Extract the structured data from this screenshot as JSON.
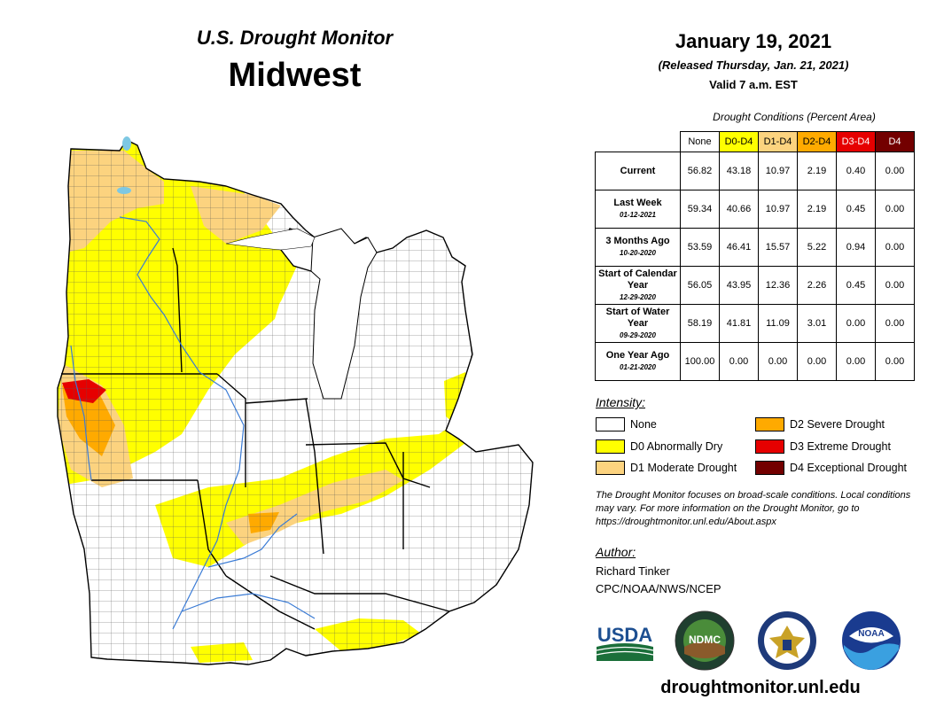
{
  "header": {
    "title_top": "U.S. Drought Monitor",
    "title_main": "Midwest",
    "date": "January 19, 2021",
    "released": "(Released Thursday, Jan. 21, 2021)",
    "valid": "Valid 7 a.m. EST"
  },
  "table": {
    "caption": "Drought Conditions (Percent Area)",
    "columns": [
      {
        "label": "None",
        "color": "#ffffff",
        "text_color": "#000000"
      },
      {
        "label": "D0-D4",
        "color": "#ffff00",
        "text_color": "#000000"
      },
      {
        "label": "D1-D4",
        "color": "#fcd37f",
        "text_color": "#000000"
      },
      {
        "label": "D2-D4",
        "color": "#ffaa00",
        "text_color": "#000000"
      },
      {
        "label": "D3-D4",
        "color": "#e60000",
        "text_color": "#ffffff"
      },
      {
        "label": "D4",
        "color": "#730000",
        "text_color": "#ffffff"
      }
    ],
    "rows": [
      {
        "label": "Current",
        "date": "",
        "values": [
          "56.82",
          "43.18",
          "10.97",
          "2.19",
          "0.40",
          "0.00"
        ]
      },
      {
        "label": "Last Week",
        "date": "01-12-2021",
        "values": [
          "59.34",
          "40.66",
          "10.97",
          "2.19",
          "0.45",
          "0.00"
        ]
      },
      {
        "label": "3 Months Ago",
        "date": "10-20-2020",
        "values": [
          "53.59",
          "46.41",
          "15.57",
          "5.22",
          "0.94",
          "0.00"
        ]
      },
      {
        "label": "Start of Calendar Year",
        "date": "12-29-2020",
        "values": [
          "56.05",
          "43.95",
          "12.36",
          "2.26",
          "0.45",
          "0.00"
        ]
      },
      {
        "label": "Start of Water Year",
        "date": "09-29-2020",
        "values": [
          "58.19",
          "41.81",
          "11.09",
          "3.01",
          "0.00",
          "0.00"
        ]
      },
      {
        "label": "One Year Ago",
        "date": "01-21-2020",
        "values": [
          "100.00",
          "0.00",
          "0.00",
          "0.00",
          "0.00",
          "0.00"
        ]
      }
    ]
  },
  "legend": {
    "title": "Intensity:",
    "items": [
      {
        "label": "None",
        "color": "#ffffff"
      },
      {
        "label": "D0 Abnormally Dry",
        "color": "#ffff00"
      },
      {
        "label": "D1 Moderate Drought",
        "color": "#fcd37f"
      },
      {
        "label": "D2 Severe Drought",
        "color": "#ffaa00"
      },
      {
        "label": "D3 Extreme Drought",
        "color": "#e60000"
      },
      {
        "label": "D4 Exceptional Drought",
        "color": "#730000"
      }
    ]
  },
  "note": "The Drought Monitor focuses on broad-scale conditions. Local conditions may vary. For more information on the Drought Monitor, go to https://droughtmonitor.unl.edu/About.aspx",
  "author": {
    "title": "Author:",
    "name": "Richard Tinker",
    "org": "CPC/NOAA/NWS/NCEP"
  },
  "logos": [
    {
      "name": "usda-logo",
      "text": "USDA"
    },
    {
      "name": "ndmc-logo",
      "text": "NDMC"
    },
    {
      "name": "doc-seal-logo",
      "text": ""
    },
    {
      "name": "noaa-logo",
      "text": "NOAA"
    }
  ],
  "website": "droughtmonitor.unl.edu"
}
